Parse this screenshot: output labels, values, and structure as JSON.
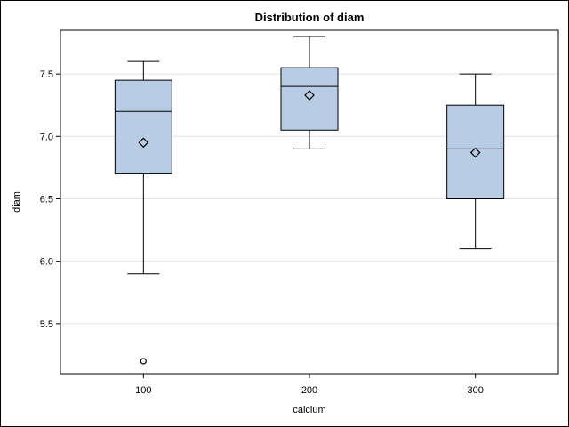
{
  "chart_data": {
    "type": "box",
    "title": "Distribution of diam",
    "xlabel": "calcium",
    "ylabel": "diam",
    "ylim": [
      5.1,
      7.85
    ],
    "yticks": [
      "5.5",
      "6.0",
      "6.5",
      "7.0",
      "7.5"
    ],
    "categories": [
      "100",
      "200",
      "300"
    ],
    "grid": "horizontal",
    "colors": {
      "box_fill": "#b8cce4",
      "stroke": "#000000",
      "grid": "#e2e2e2"
    },
    "boxes": [
      {
        "category": "100",
        "whisker_low": 5.9,
        "q1": 6.7,
        "median": 7.2,
        "q3": 7.45,
        "whisker_high": 7.6,
        "mean": 6.95,
        "outliers": [
          5.2
        ]
      },
      {
        "category": "200",
        "whisker_low": 6.9,
        "q1": 7.05,
        "median": 7.4,
        "q3": 7.55,
        "whisker_high": 7.8,
        "mean": 7.33,
        "outliers": []
      },
      {
        "category": "300",
        "whisker_low": 6.1,
        "q1": 6.5,
        "median": 6.9,
        "q3": 7.25,
        "whisker_high": 7.5,
        "mean": 6.87,
        "outliers": []
      }
    ]
  }
}
